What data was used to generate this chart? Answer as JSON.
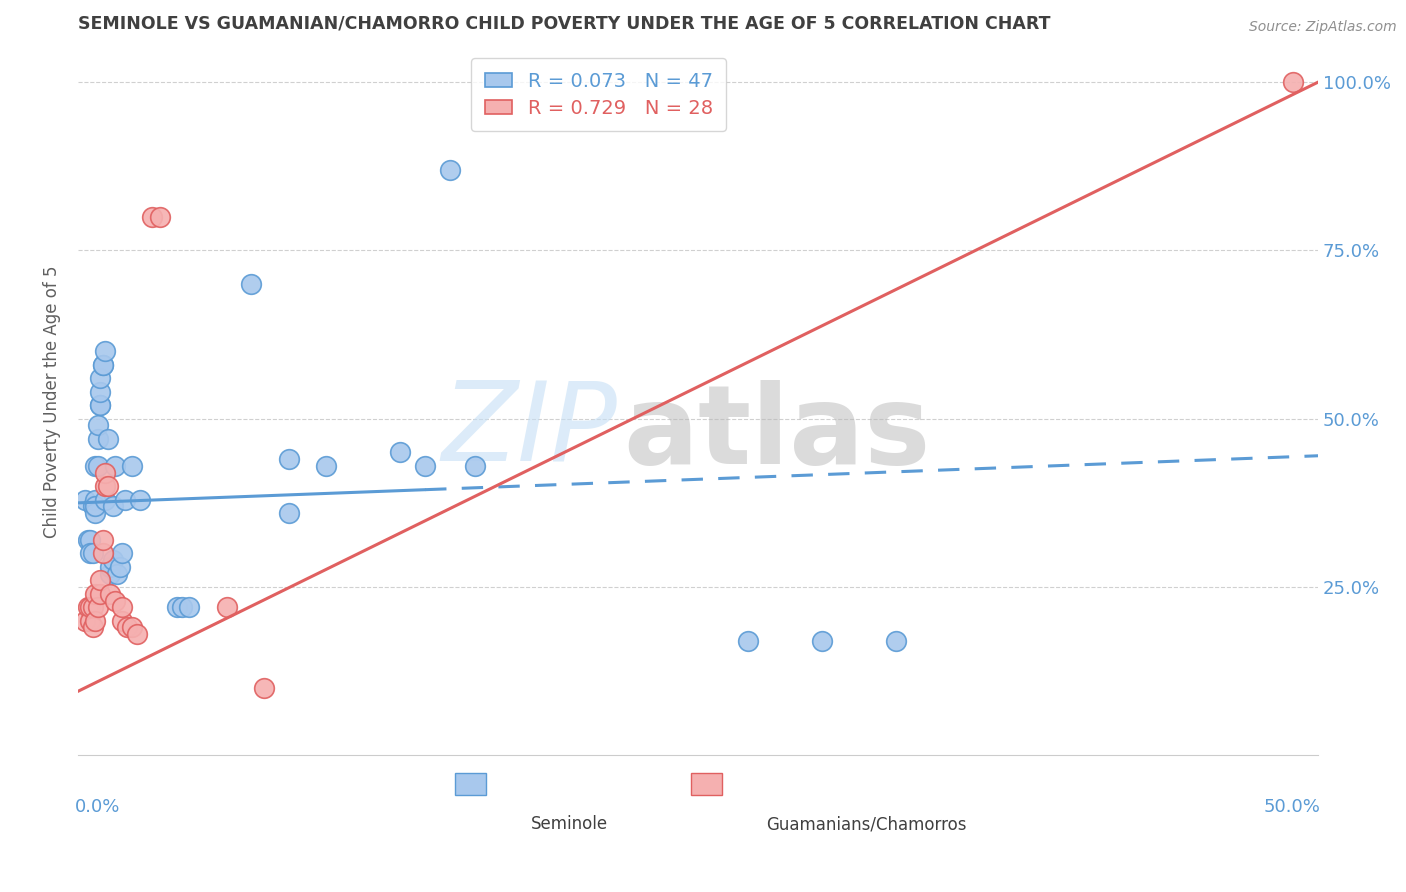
{
  "title": "SEMINOLE VS GUAMANIAN/CHAMORRO CHILD POVERTY UNDER THE AGE OF 5 CORRELATION CHART",
  "source": "Source: ZipAtlas.com",
  "ylabel": "Child Poverty Under the Age of 5",
  "xlim": [
    0.0,
    0.5
  ],
  "ylim": [
    0.0,
    1.05
  ],
  "yticks": [
    0.25,
    0.5,
    0.75,
    1.0
  ],
  "ytick_labels": [
    "25.0%",
    "50.0%",
    "75.0%",
    "100.0%"
  ],
  "xtick_positions": [
    0.0,
    0.1,
    0.2,
    0.3,
    0.4,
    0.5
  ],
  "legend_entries": [
    {
      "label": "R = 0.073   N = 47"
    },
    {
      "label": "R = 0.729   N = 28"
    }
  ],
  "seminole_color_face": "#a8c8ed",
  "seminole_color_edge": "#5b9bd5",
  "guamanian_color_face": "#f5b0b0",
  "guamanian_color_edge": "#e06060",
  "seminole_points": [
    [
      0.003,
      0.38
    ],
    [
      0.004,
      0.32
    ],
    [
      0.005,
      0.32
    ],
    [
      0.005,
      0.3
    ],
    [
      0.006,
      0.3
    ],
    [
      0.006,
      0.37
    ],
    [
      0.007,
      0.38
    ],
    [
      0.007,
      0.36
    ],
    [
      0.007,
      0.37
    ],
    [
      0.007,
      0.43
    ],
    [
      0.008,
      0.43
    ],
    [
      0.008,
      0.47
    ],
    [
      0.008,
      0.49
    ],
    [
      0.009,
      0.52
    ],
    [
      0.009,
      0.52
    ],
    [
      0.009,
      0.54
    ],
    [
      0.009,
      0.56
    ],
    [
      0.01,
      0.58
    ],
    [
      0.01,
      0.58
    ],
    [
      0.011,
      0.6
    ],
    [
      0.011,
      0.38
    ],
    [
      0.012,
      0.47
    ],
    [
      0.013,
      0.27
    ],
    [
      0.013,
      0.28
    ],
    [
      0.014,
      0.29
    ],
    [
      0.014,
      0.37
    ],
    [
      0.015,
      0.43
    ],
    [
      0.016,
      0.27
    ],
    [
      0.017,
      0.28
    ],
    [
      0.018,
      0.3
    ],
    [
      0.019,
      0.38
    ],
    [
      0.022,
      0.43
    ],
    [
      0.025,
      0.38
    ],
    [
      0.04,
      0.22
    ],
    [
      0.042,
      0.22
    ],
    [
      0.045,
      0.22
    ],
    [
      0.07,
      0.7
    ],
    [
      0.085,
      0.44
    ],
    [
      0.085,
      0.36
    ],
    [
      0.1,
      0.43
    ],
    [
      0.13,
      0.45
    ],
    [
      0.14,
      0.43
    ],
    [
      0.15,
      0.87
    ],
    [
      0.16,
      0.43
    ],
    [
      0.27,
      0.17
    ],
    [
      0.3,
      0.17
    ],
    [
      0.33,
      0.17
    ]
  ],
  "guamanian_points": [
    [
      0.003,
      0.2
    ],
    [
      0.004,
      0.22
    ],
    [
      0.005,
      0.2
    ],
    [
      0.005,
      0.22
    ],
    [
      0.006,
      0.19
    ],
    [
      0.006,
      0.22
    ],
    [
      0.007,
      0.2
    ],
    [
      0.007,
      0.24
    ],
    [
      0.008,
      0.22
    ],
    [
      0.009,
      0.24
    ],
    [
      0.009,
      0.26
    ],
    [
      0.01,
      0.3
    ],
    [
      0.01,
      0.32
    ],
    [
      0.011,
      0.4
    ],
    [
      0.011,
      0.42
    ],
    [
      0.012,
      0.4
    ],
    [
      0.013,
      0.24
    ],
    [
      0.015,
      0.23
    ],
    [
      0.018,
      0.2
    ],
    [
      0.018,
      0.22
    ],
    [
      0.02,
      0.19
    ],
    [
      0.022,
      0.19
    ],
    [
      0.024,
      0.18
    ],
    [
      0.03,
      0.8
    ],
    [
      0.033,
      0.8
    ],
    [
      0.06,
      0.22
    ],
    [
      0.075,
      0.1
    ],
    [
      0.49,
      1.0
    ]
  ],
  "seminole_trend_x0": 0.0,
  "seminole_trend_y0": 0.375,
  "seminole_trend_x1": 0.5,
  "seminole_trend_y1": 0.445,
  "seminole_trend_break": 0.14,
  "guamanian_trend_x0": 0.0,
  "guamanian_trend_y0": 0.095,
  "guamanian_trend_x1": 0.5,
  "guamanian_trend_y1": 1.0,
  "watermark_zip": "ZIP",
  "watermark_atlas": "atlas",
  "background_color": "#ffffff",
  "grid_color": "#d0d0d0",
  "title_color": "#404040",
  "tick_color": "#5b9bd5",
  "ylabel_color": "#606060",
  "source_color": "#909090"
}
